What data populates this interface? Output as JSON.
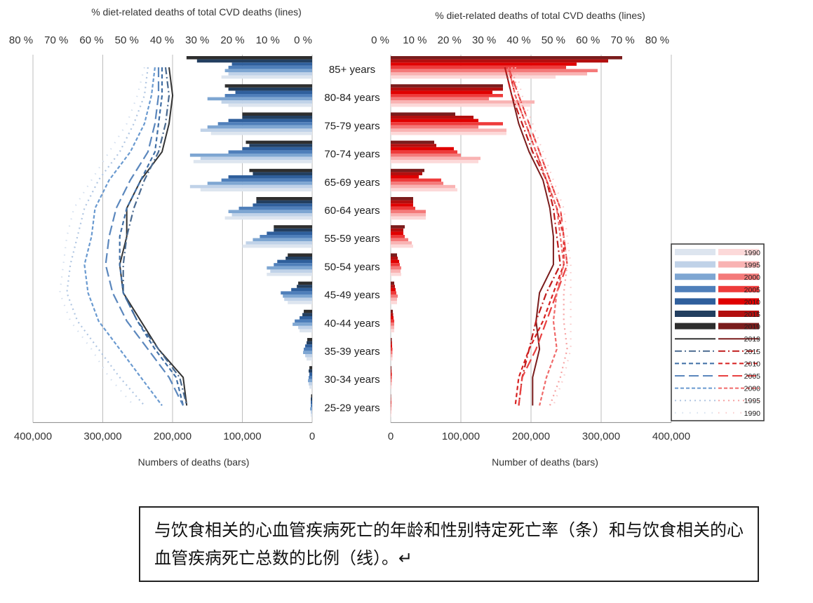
{
  "chart_data": [
    {
      "type": "bar",
      "panel": "left",
      "top_axis_title": "% diet-related deaths of total CVD deaths (lines)",
      "bottom_axis_title": "Numbers of deaths (bars)",
      "bar_axis_ticks": [
        "400,000",
        "300,000",
        "200,000",
        "100,000",
        "0"
      ],
      "bar_axis_range": [
        0,
        400000
      ],
      "pct_axis_ticks": [
        "80 %",
        "70 %",
        "60 %",
        "50 %",
        "40 %",
        "30 %",
        "20 %",
        "10 %",
        "0 %"
      ],
      "pct_axis_range": [
        0,
        80
      ],
      "age_groups": [
        "85+ years",
        "80-84 years",
        "75-79 years",
        "70-74 years",
        "65-69 years",
        "60-64 years",
        "55-59 years",
        "50-54 years",
        "45-49 years",
        "40-44 years",
        "35-39 years",
        "30-34 years",
        "25-29 years"
      ],
      "bar_series": [
        {
          "name": "1990",
          "color": "#dde5ef",
          "values": [
            130000,
            120000,
            145000,
            170000,
            160000,
            125000,
            100000,
            65000,
            35000,
            18000,
            8000,
            4000,
            2000
          ]
        },
        {
          "name": "1995",
          "color": "#c0d2e8",
          "values": [
            120000,
            130000,
            160000,
            160000,
            175000,
            115000,
            95000,
            60000,
            40000,
            20000,
            10000,
            5000,
            2000
          ]
        },
        {
          "name": "2000",
          "color": "#7ea6d2",
          "values": [
            125000,
            150000,
            150000,
            175000,
            150000,
            120000,
            85000,
            65000,
            42000,
            28000,
            13000,
            6000,
            3000
          ]
        },
        {
          "name": "2005",
          "color": "#4f7fba",
          "values": [
            120000,
            125000,
            135000,
            120000,
            130000,
            105000,
            75000,
            55000,
            45000,
            25000,
            12000,
            5000,
            2000
          ]
        },
        {
          "name": "2010",
          "color": "#2f5f9c",
          "values": [
            115000,
            110000,
            120000,
            100000,
            120000,
            85000,
            65000,
            50000,
            30000,
            18000,
            10000,
            4000,
            2000
          ]
        },
        {
          "name": "2015",
          "color": "#233f60",
          "values": [
            165000,
            120000,
            100000,
            90000,
            85000,
            80000,
            55000,
            38000,
            22000,
            14000,
            8000,
            5000,
            2000
          ]
        },
        {
          "name": "2019",
          "color": "#2e2e2e",
          "values": [
            180000,
            125000,
            100000,
            95000,
            90000,
            80000,
            55000,
            35000,
            20000,
            12000,
            7000,
            4000,
            1500
          ]
        }
      ],
      "line_series": [
        {
          "name": "2019",
          "style": "solid",
          "color": "#333333",
          "values": [
            38,
            37,
            38,
            40,
            46,
            50,
            50,
            52,
            51,
            46,
            41,
            34,
            33
          ]
        },
        {
          "name": "2015",
          "style": "dashdot",
          "color": "#4a6a90",
          "values": [
            39,
            38,
            39,
            41,
            45,
            48,
            50,
            51,
            51,
            47,
            41,
            35,
            33
          ]
        },
        {
          "name": "2010",
          "style": "dashed",
          "color": "#3f6ea5",
          "values": [
            40,
            40,
            41,
            42,
            46,
            50,
            52,
            52,
            51,
            47,
            42,
            36,
            34
          ]
        },
        {
          "name": "2005",
          "style": "longdash",
          "color": "#5b87bd",
          "values": [
            41,
            41,
            42,
            44,
            49,
            53,
            55,
            56,
            54,
            50,
            44,
            38,
            34
          ]
        },
        {
          "name": "2000",
          "style": "shortdash",
          "color": "#6a9ad0",
          "values": [
            42,
            43,
            45,
            49,
            55,
            59,
            60,
            62,
            61,
            58,
            52,
            46,
            40
          ]
        },
        {
          "name": "1995",
          "style": "dotted",
          "color": "#b0c6e2",
          "values": [
            44,
            45,
            48,
            52,
            58,
            62,
            64,
            66,
            67,
            64,
            58,
            52,
            45
          ]
        },
        {
          "name": "1990",
          "style": "sparsedot",
          "color": "#d3dfee",
          "values": [
            45,
            47,
            50,
            55,
            60,
            65,
            67,
            68,
            69,
            66,
            60,
            55,
            48
          ]
        }
      ]
    },
    {
      "type": "bar",
      "panel": "right",
      "top_axis_title": "% diet-related deaths of total CVD deaths (lines)",
      "bottom_axis_title": "Number of deaths (bars)",
      "bar_axis_ticks": [
        "0",
        "100,000",
        "200,000",
        "300,000",
        "400,000"
      ],
      "bar_axis_range": [
        0,
        400000
      ],
      "pct_axis_ticks": [
        "0 %",
        "10 %",
        "20 %",
        "30 %",
        "40 %",
        "50 %",
        "60 %",
        "70 %",
        "80 %"
      ],
      "pct_axis_range": [
        0,
        80
      ],
      "age_groups": [
        "85+ years",
        "80-84 years",
        "75-79 years",
        "70-74 years",
        "65-69 years",
        "60-64 years",
        "55-59 years",
        "50-54 years",
        "45-49 years",
        "40-44 years",
        "35-39 years",
        "30-34 years",
        "25-29 years"
      ],
      "bar_series": [
        {
          "name": "1990",
          "color": "#fcd9d9",
          "values": [
            235000,
            200000,
            165000,
            125000,
            95000,
            50000,
            32000,
            15000,
            9000,
            5000,
            2500,
            1500,
            800
          ]
        },
        {
          "name": "1995",
          "color": "#f9b3b3",
          "values": [
            280000,
            205000,
            165000,
            128000,
            92000,
            50000,
            30000,
            14000,
            9000,
            5000,
            2500,
            1500,
            800
          ]
        },
        {
          "name": "2000",
          "color": "#f47a7a",
          "values": [
            295000,
            140000,
            125000,
            100000,
            75000,
            50000,
            25000,
            15000,
            10000,
            5000,
            2500,
            1500,
            800
          ]
        },
        {
          "name": "2005",
          "color": "#ee3b3b",
          "values": [
            250000,
            160000,
            160000,
            95000,
            72000,
            35000,
            20000,
            13000,
            8000,
            5000,
            2500,
            1500,
            800
          ]
        },
        {
          "name": "2010",
          "color": "#e00000",
          "values": [
            265000,
            145000,
            125000,
            90000,
            40000,
            32000,
            18000,
            12000,
            7000,
            4000,
            2000,
            1500,
            800
          ]
        },
        {
          "name": "2015",
          "color": "#b30f0f",
          "values": [
            310000,
            160000,
            118000,
            65000,
            45000,
            32000,
            18000,
            10000,
            6000,
            3500,
            1800,
            1200,
            600
          ]
        },
        {
          "name": "2019",
          "color": "#7a1c1c",
          "values": [
            330000,
            160000,
            92000,
            62000,
            48000,
            32000,
            20000,
            9000,
            5000,
            3000,
            1500,
            1000,
            500
          ]
        }
      ],
      "line_series": [
        {
          "name": "2019",
          "style": "solid",
          "color": "#7a1c1c",
          "values": [
            36,
            38,
            40,
            43,
            47,
            49,
            50,
            50,
            46,
            45,
            46,
            44,
            44
          ]
        },
        {
          "name": "2015",
          "style": "dashdot",
          "color": "#c01c1c",
          "values": [
            36,
            38,
            41,
            44,
            48,
            50,
            51,
            52,
            48,
            45,
            43,
            41,
            40
          ]
        },
        {
          "name": "2010",
          "style": "dashed",
          "color": "#d62020",
          "values": [
            37,
            39,
            42,
            45,
            48,
            51,
            53,
            53,
            50,
            47,
            43,
            40,
            39
          ]
        },
        {
          "name": "2005",
          "style": "longdash",
          "color": "#e84040",
          "values": [
            37,
            40,
            43,
            46,
            49,
            52,
            53,
            54,
            51,
            48,
            45,
            41,
            40
          ]
        },
        {
          "name": "2000",
          "style": "shortdash",
          "color": "#f06a6a",
          "values": [
            37,
            39,
            42,
            45,
            48,
            51,
            52,
            53,
            51,
            50,
            51,
            48,
            46
          ]
        },
        {
          "name": "1995",
          "style": "dotted",
          "color": "#f6a2a2",
          "values": [
            38,
            40,
            43,
            46,
            49,
            52,
            53,
            54,
            53,
            53,
            54,
            52,
            49
          ]
        },
        {
          "name": "1990",
          "style": "sparsedot",
          "color": "#f9c8c8",
          "values": [
            39,
            41,
            44,
            47,
            50,
            53,
            54,
            55,
            55,
            55,
            55,
            53,
            50
          ]
        }
      ]
    }
  ],
  "legend": {
    "years": [
      "1990",
      "1995",
      "2000",
      "2005",
      "2010",
      "2015",
      "2019",
      "2019",
      "2015",
      "2010",
      "2005",
      "2000",
      "1995",
      "1990"
    ]
  },
  "caption": {
    "text": "与饮食相关的心血管疾病死亡的年龄和性别特定死亡率（条）和与饮食相关的心血管疾病死亡总数的比例（线）。↵"
  }
}
